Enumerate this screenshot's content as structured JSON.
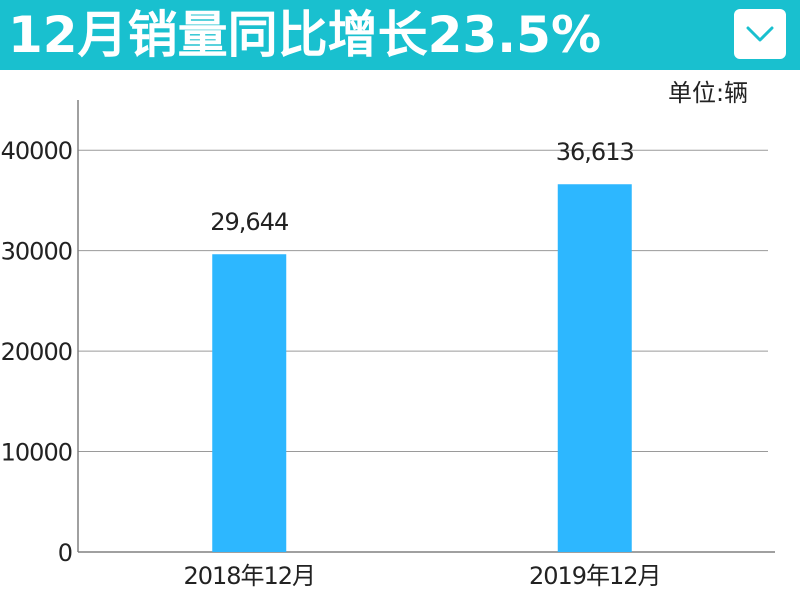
{
  "header": {
    "title": "12月销量同比增长23.5%",
    "menu_icon": "chevron-down-icon"
  },
  "unit_label": "单位:辆",
  "colors": {
    "banner": "#19c0cf",
    "bar": "#2db7ff",
    "grid": "#9a9a9a",
    "axis": "#808080"
  },
  "chart_data": {
    "type": "bar",
    "title": "12月销量同比增长23.5%",
    "xlabel": "",
    "ylabel": "",
    "unit": "单位:辆",
    "categories": [
      "2018年12月",
      "2019年12月"
    ],
    "values": [
      29644,
      36613
    ],
    "value_labels": [
      "29,644",
      "36,613"
    ],
    "ylim": [
      0,
      45000
    ],
    "yticks": [
      0,
      10000,
      20000,
      30000,
      40000
    ],
    "ytick_labels": [
      "0",
      "10000",
      "20000",
      "30000",
      "40000"
    ],
    "grid": true,
    "legend": "none"
  }
}
